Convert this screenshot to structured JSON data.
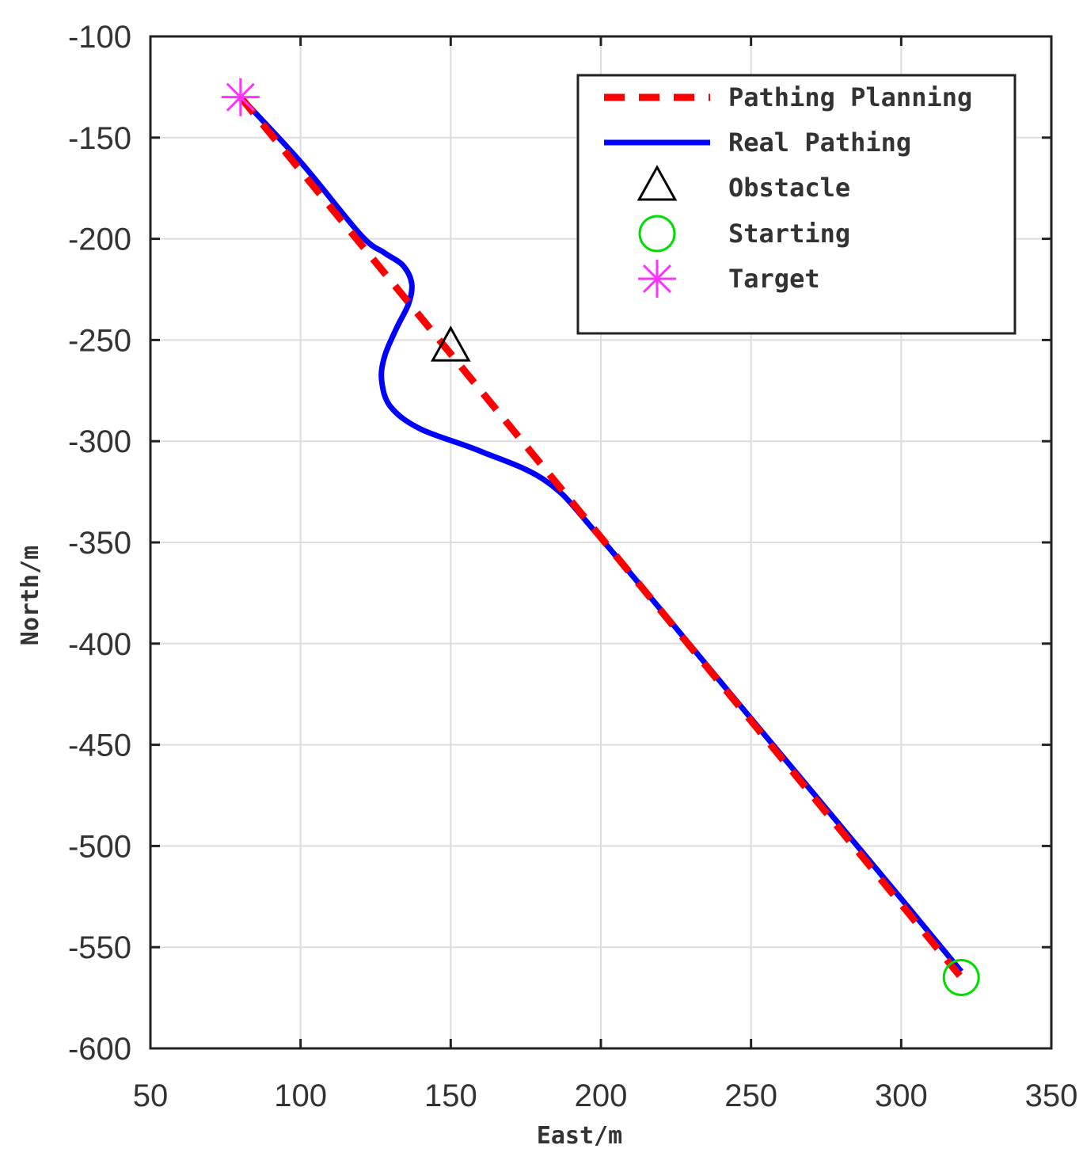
{
  "chart_data": {
    "type": "line",
    "title": "",
    "xlabel": "East/m",
    "ylabel": "North/m",
    "xlim": [
      50,
      350
    ],
    "ylim": [
      -600,
      -100
    ],
    "xticks": [
      50,
      100,
      150,
      200,
      250,
      300,
      350
    ],
    "yticks": [
      -100,
      -150,
      -200,
      -250,
      -300,
      -350,
      -400,
      -450,
      -500,
      -550,
      -600
    ],
    "xtick_labels": [
      "50",
      "100",
      "150",
      "200",
      "250",
      "300",
      "350"
    ],
    "ytick_labels": [
      "-100",
      "-150",
      "-200",
      "-250",
      "-300",
      "-350",
      "-400",
      "-450",
      "-500",
      "-550",
      "-600"
    ],
    "grid": true,
    "legend_position": "top-right",
    "series": [
      {
        "name": "Pathing Planning",
        "kind": "line",
        "style": "dashed",
        "color": "#ff0000",
        "x": [
          80,
          320
        ],
        "y": [
          -130,
          -565
        ]
      },
      {
        "name": "Real Pathing",
        "kind": "line",
        "style": "solid",
        "color": "#0000ff",
        "x": [
          80,
          100,
          120,
          128,
          134,
          137,
          136,
          132,
          128,
          127,
          130,
          140,
          160,
          182,
          200,
          250,
          300,
          320
        ],
        "y": [
          -130,
          -162,
          -198,
          -207,
          -213,
          -222,
          -232,
          -244,
          -258,
          -270,
          -283,
          -294,
          -305,
          -320,
          -348,
          -437,
          -526,
          -562
        ]
      },
      {
        "name": "Obstacle",
        "kind": "marker",
        "marker": "triangle",
        "color": "#000000",
        "x": [
          150
        ],
        "y": [
          -253
        ]
      },
      {
        "name": "Starting",
        "kind": "marker",
        "marker": "circle",
        "color": "#00dd00",
        "x": [
          320
        ],
        "y": [
          -565
        ]
      },
      {
        "name": "Target",
        "kind": "marker",
        "marker": "star",
        "color": "#ff33ff",
        "x": [
          80
        ],
        "y": [
          -130
        ]
      }
    ]
  }
}
